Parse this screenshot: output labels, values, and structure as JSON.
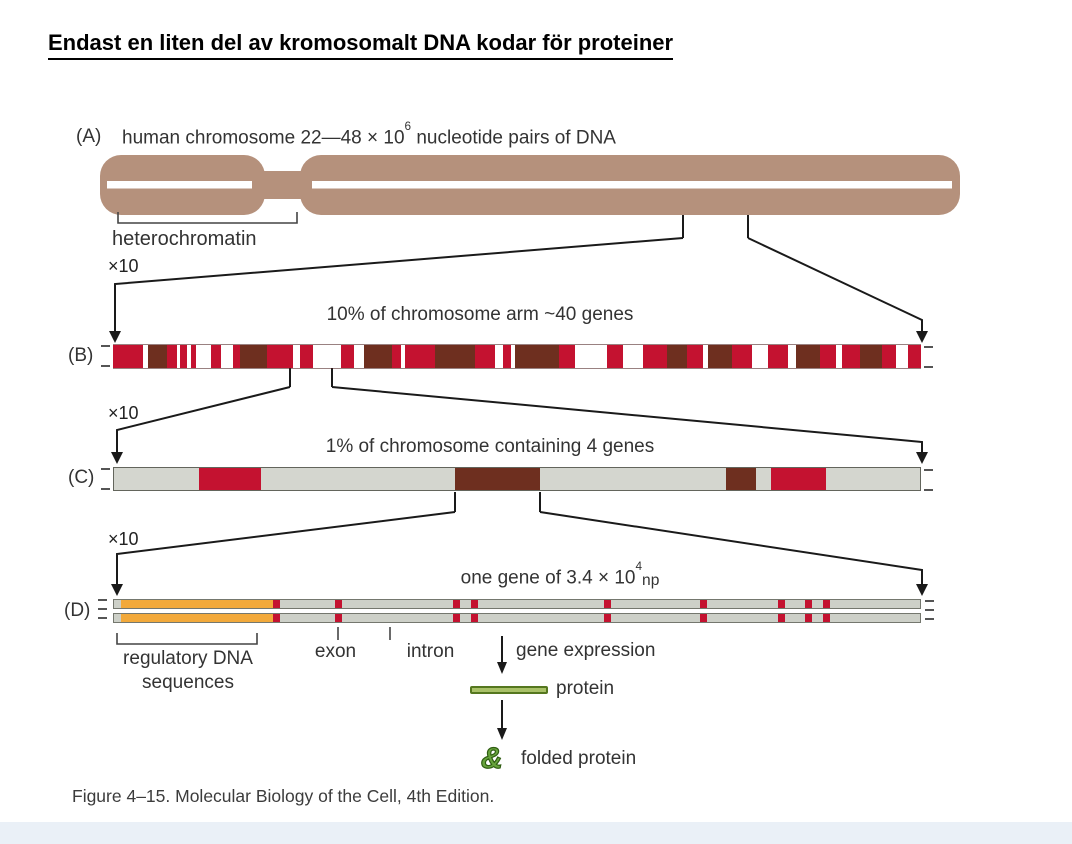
{
  "title": "Endast en liten del av kromosomalt DNA kodar för proteiner",
  "caption": "Figure 4–15. Molecular Biology of the Cell, 4th Edition.",
  "panels": {
    "a": {
      "tag": "(A)",
      "heading_pre": "human chromosome 22—48 × 10",
      "heading_sup": "6",
      "heading_post": " nucleotide pairs of DNA",
      "bracket_label": "heterochromatin"
    },
    "b": {
      "tag": "(B)",
      "zoom": "×10",
      "heading": "10% of chromosome arm ~40 genes"
    },
    "c": {
      "tag": "(C)",
      "zoom": "×10",
      "heading": "1% of chromosome containing 4 genes"
    },
    "d": {
      "tag": "(D)",
      "zoom": "×10",
      "heading_pre": "one gene of 3.4 × 10",
      "heading_sup": "4",
      "heading_post": "np",
      "labels": {
        "regulatory_line1": "regulatory DNA",
        "regulatory_line2": "sequences",
        "exon": "exon",
        "intron": "intron",
        "gene_expression": "gene expression",
        "protein": "protein",
        "folded_protein": "folded protein"
      }
    }
  },
  "colors": {
    "chromosome_tan": "#b5917c",
    "band_red": "#c41230",
    "band_brown": "#6e2f1f",
    "band_gray": "#d4d6cf",
    "strand_gray": "#cdd0c8",
    "regulatory_orange": "#f2a93b",
    "protein_green_fill": "#a9c168",
    "protein_green_border": "#55771f",
    "folded_protein_green": "#67a33c",
    "line_black": "#1a1a1a",
    "band_map": {
      "R": "#c41230",
      "W": "#ffffff",
      "K": "#6e2f1f",
      "G": "#d4d6cf",
      "S": "#cdd0c8",
      "O": "#f2a93b"
    }
  },
  "bands": {
    "b": [
      [
        "R",
        30
      ],
      [
        "W",
        5
      ],
      [
        "K",
        19
      ],
      [
        "R",
        10
      ],
      [
        "W",
        3
      ],
      [
        "R",
        7
      ],
      [
        "W",
        4
      ],
      [
        "R",
        5
      ],
      [
        "W",
        15
      ],
      [
        "R",
        10
      ],
      [
        "W",
        12
      ],
      [
        "R",
        7
      ],
      [
        "K",
        27
      ],
      [
        "R",
        26
      ],
      [
        "W",
        7
      ],
      [
        "R",
        13
      ],
      [
        "W",
        28
      ],
      [
        "R",
        13
      ],
      [
        "W",
        10
      ],
      [
        "K",
        28
      ],
      [
        "R",
        9
      ],
      [
        "W",
        4
      ],
      [
        "R",
        30
      ],
      [
        "K",
        40
      ],
      [
        "R",
        20
      ],
      [
        "W",
        8
      ],
      [
        "R",
        8
      ],
      [
        "W",
        4
      ],
      [
        "K",
        44
      ],
      [
        "R",
        16
      ],
      [
        "W",
        32
      ],
      [
        "R",
        16
      ],
      [
        "W",
        20
      ],
      [
        "R",
        24
      ],
      [
        "K",
        20
      ],
      [
        "R",
        16
      ],
      [
        "W",
        5
      ],
      [
        "K",
        24
      ],
      [
        "R",
        20
      ],
      [
        "W",
        16
      ],
      [
        "R",
        20
      ],
      [
        "W",
        8
      ],
      [
        "K",
        24
      ],
      [
        "R",
        16
      ],
      [
        "W",
        6
      ],
      [
        "R",
        18
      ],
      [
        "K",
        22
      ],
      [
        "R",
        14
      ],
      [
        "W",
        12
      ],
      [
        "R",
        13
      ]
    ],
    "c": [
      [
        "G",
        85
      ],
      [
        "R",
        62
      ],
      [
        "G",
        195
      ],
      [
        "K",
        85
      ],
      [
        "G",
        187
      ],
      [
        "K",
        30
      ],
      [
        "G",
        15
      ],
      [
        "R",
        55
      ],
      [
        "G",
        94
      ]
    ],
    "d": [
      [
        "S",
        7
      ],
      [
        "O",
        152
      ],
      [
        "R",
        7
      ],
      [
        "S",
        56
      ],
      [
        "R",
        7
      ],
      [
        "S",
        111
      ],
      [
        "R",
        7
      ],
      [
        "S",
        11
      ],
      [
        "R",
        7
      ],
      [
        "S",
        126
      ],
      [
        "R",
        7
      ],
      [
        "S",
        90
      ],
      [
        "R",
        7
      ],
      [
        "S",
        71
      ],
      [
        "R",
        7
      ],
      [
        "S",
        20
      ],
      [
        "R",
        7
      ],
      [
        "S",
        11
      ],
      [
        "R",
        7
      ],
      [
        "S",
        90
      ]
    ]
  }
}
